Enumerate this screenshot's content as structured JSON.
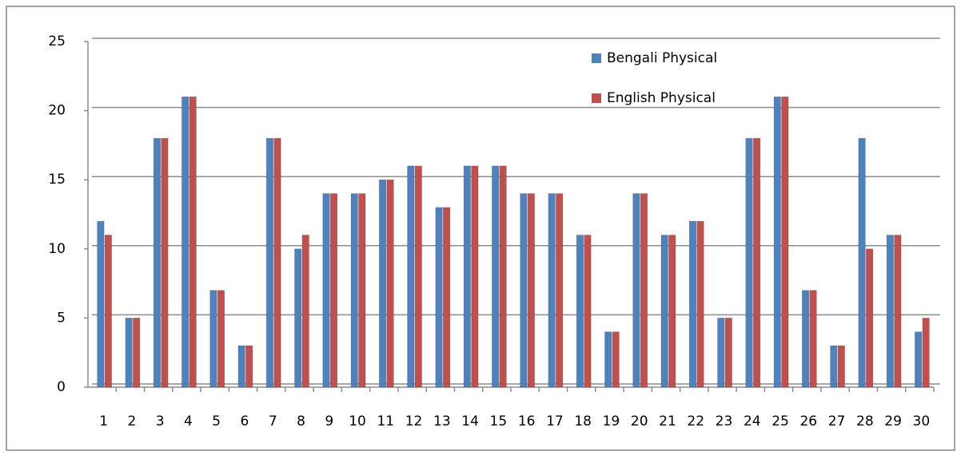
{
  "chart_data": {
    "type": "bar",
    "categories": [
      "1",
      "2",
      "3",
      "4",
      "5",
      "6",
      "7",
      "8",
      "9",
      "10",
      "11",
      "12",
      "13",
      "14",
      "15",
      "16",
      "17",
      "18",
      "19",
      "20",
      "21",
      "22",
      "23",
      "24",
      "25",
      "26",
      "27",
      "28",
      "29",
      "30"
    ],
    "series": [
      {
        "name": "Bengali Physical",
        "color": "#4f81bd",
        "values": [
          12,
          5,
          18,
          21,
          7,
          3,
          18,
          10,
          14,
          14,
          15,
          16,
          13,
          16,
          16,
          14,
          14,
          11,
          4,
          14,
          11,
          12,
          5,
          18,
          21,
          7,
          3,
          18,
          11,
          4
        ]
      },
      {
        "name": "English Physical",
        "color": "#c0504d",
        "values": [
          11,
          5,
          18,
          21,
          7,
          3,
          18,
          11,
          14,
          14,
          15,
          16,
          13,
          16,
          16,
          14,
          14,
          11,
          4,
          14,
          11,
          12,
          5,
          18,
          21,
          7,
          3,
          10,
          11,
          5
        ]
      }
    ],
    "ylim": [
      0,
      25
    ],
    "yticks": [
      0,
      5,
      10,
      15,
      20,
      25
    ],
    "grid": true
  }
}
